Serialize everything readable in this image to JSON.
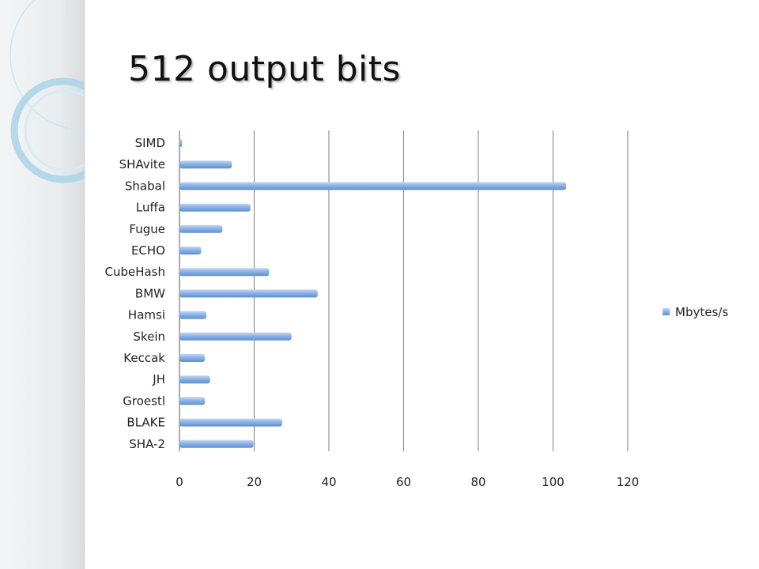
{
  "slide": {
    "title": "512 output bits"
  },
  "colors": {
    "bar_top": "#a9c6ee",
    "bar_bottom": "#5b8fd6",
    "grid": "#8a8a8a",
    "decor_ring": "#a9d4e6"
  },
  "chart_data": {
    "type": "bar",
    "orientation": "horizontal",
    "categories": [
      "SIMD",
      "SHAvite",
      "Shabal",
      "Luffa",
      "Fugue",
      "ECHO",
      "CubeHash",
      "BMW",
      "Hamsi",
      "Skein",
      "Keccak",
      "JH",
      "Groestl",
      "BLAKE",
      "SHA-2"
    ],
    "series": [
      {
        "name": "Mbytes/s",
        "values": [
          0.7,
          14,
          103.5,
          19,
          11.5,
          5.8,
          24,
          37,
          7.2,
          30,
          6.8,
          8.2,
          6.8,
          27.5,
          19.8
        ]
      }
    ],
    "xlim": [
      0,
      120
    ],
    "xticks": [
      0,
      20,
      40,
      60,
      80,
      100,
      120
    ],
    "grid": true,
    "legend_position": "right"
  }
}
